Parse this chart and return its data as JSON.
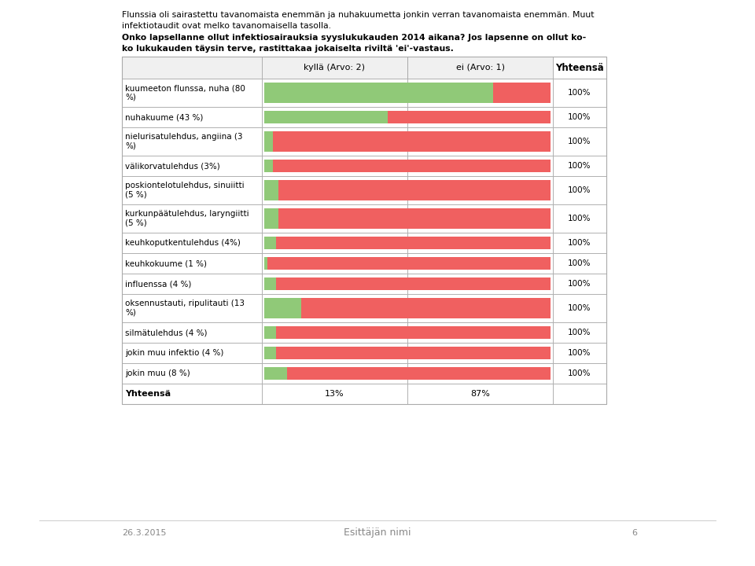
{
  "title_text1": "Flunssia oli sairastettu tavanomaista enemmän ja nuhakuumetta jonkin verran tavanomaista enemmän. Muut",
  "title_text2": "infektiotaudit ovat melko tavanomaisella tasolla.",
  "title_bold1": "Onko lapsellanne ollut infektiosairauksia syyslukukauden 2014 aikana? Jos lapsenne on ollut ko-",
  "title_bold2": "ko lukukauden täysin terve, rastittakaa jokaiselta riviltä 'ei'-vastaus.",
  "col_kylla": "kyllä (Arvo: 2)",
  "col_ei": "ei (Arvo: 1)",
  "col_yhteensa": "Yhteensä",
  "rows": [
    {
      "label": "kuumeeton flunssa, nuha (80\n%)",
      "kylla": 80,
      "ei": 20
    },
    {
      "label": "nuhakuume (43 %)",
      "kylla": 43,
      "ei": 57
    },
    {
      "label": "nielurisatulehdus, angiina (3\n%)",
      "kylla": 3,
      "ei": 97
    },
    {
      "label": "välikorvatulehdus (3%)",
      "kylla": 3,
      "ei": 97
    },
    {
      "label": "poskiontelotulehdus, sinuiitti\n(5 %)",
      "kylla": 5,
      "ei": 95
    },
    {
      "label": "kurkunpäätulehdus, laryngiitti\n(5 %)",
      "kylla": 5,
      "ei": 95
    },
    {
      "label": "keuhkoputkentulehdus (4%)",
      "kylla": 4,
      "ei": 96
    },
    {
      "label": "keuhkokuume (1 %)",
      "kylla": 1,
      "ei": 99
    },
    {
      "label": "influenssa (4 %)",
      "kylla": 4,
      "ei": 96
    },
    {
      "label": "oksennustauti, ripulitauti (13\n%)",
      "kylla": 13,
      "ei": 87
    },
    {
      "label": "silmätulehdus (4 %)",
      "kylla": 4,
      "ei": 96
    },
    {
      "label": "jokin muu infektio (4 %)",
      "kylla": 4,
      "ei": 96
    },
    {
      "label": "jokin muu (8 %)",
      "kylla": 8,
      "ei": 92
    }
  ],
  "total_kylla": "13%",
  "total_ei": "87%",
  "color_kylla": "#90C978",
  "color_ei": "#F06060",
  "bg_color": "#FFFFFF",
  "footer_date": "26.3.2015",
  "footer_center": "Esittäjän nimi",
  "footer_page": "6"
}
